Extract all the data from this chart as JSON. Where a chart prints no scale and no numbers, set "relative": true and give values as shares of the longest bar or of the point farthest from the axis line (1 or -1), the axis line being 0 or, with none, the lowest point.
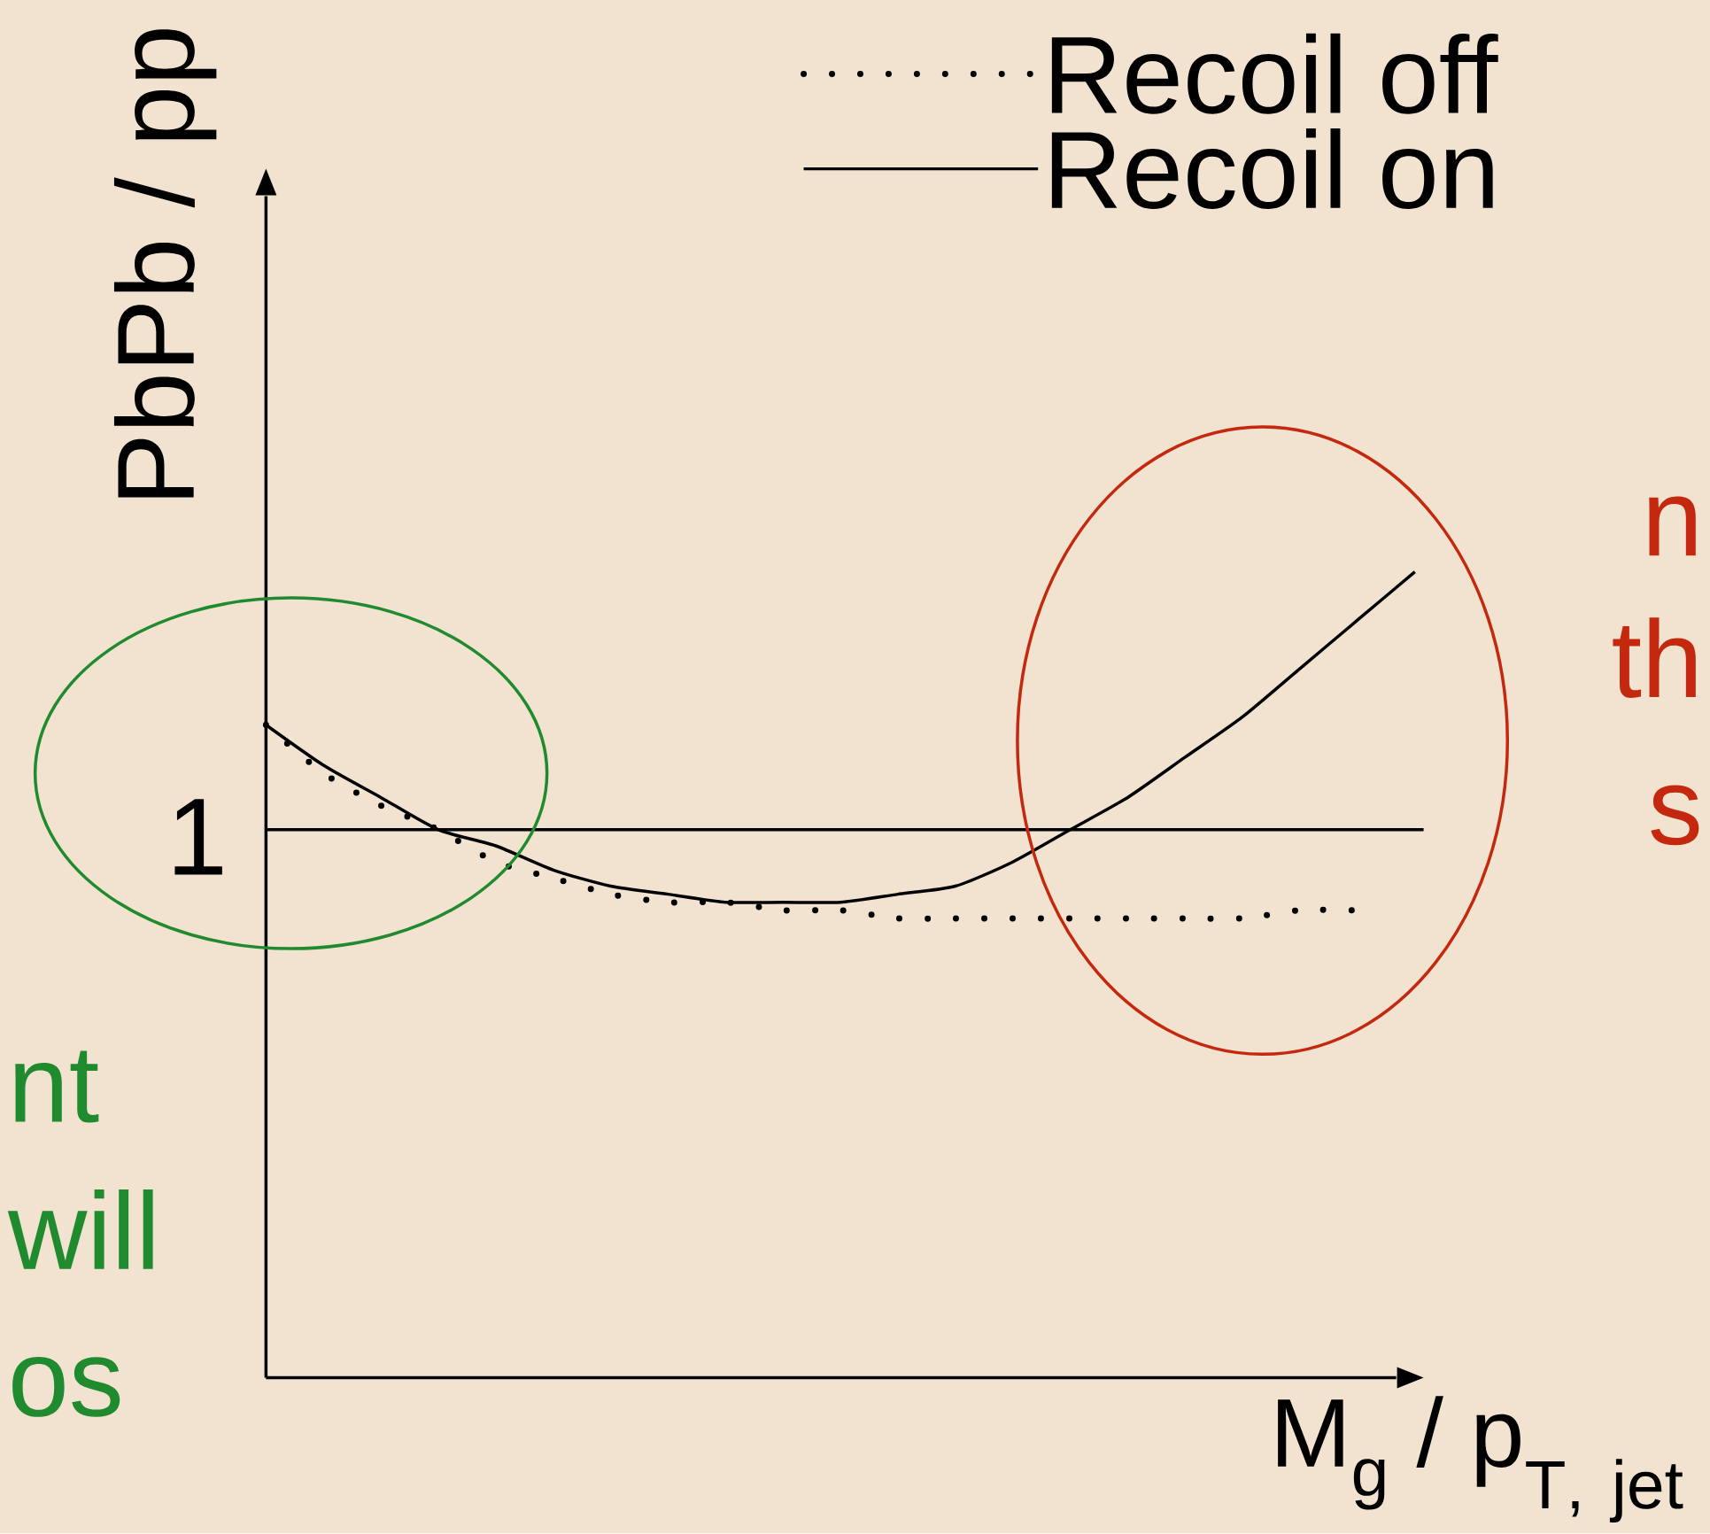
{
  "chart_data": {
    "type": "line",
    "relative": true,
    "xlabel": "\\mathrm{M_{g}}\\hbox{ / }\\mathrm{p}_{\\mathrm{T}\\hbox{\\fontsize{75}{80}\\selectfont ,}\\mathrm{\\ jet}}",
    "ylabel": "PbPb / pp",
    "categories": [
      null,
      null,
      null,
      null,
      null,
      null,
      null,
      null,
      null,
      null,
      null,
      null,
      null,
      null,
      null,
      null,
      null,
      null,
      null,
      null,
      null
    ],
    "series": [
      {
        "name": "Recoil off",
        "color": "#000000",
        "line_style": "dotted",
        "values": [
          0.81,
          0.75,
          0.71,
          0.68,
          0.64,
          0.62,
          0.6,
          0.59,
          0.59,
          0.58,
          0.58,
          0.57,
          0.57,
          0.57,
          0.57,
          0.57,
          0.57,
          0.57,
          0.58,
          0.58,
          null
        ]
      },
      {
        "name": "Recoil on",
        "color": "#000000",
        "line_style": "solid",
        "values": [
          0.81,
          0.76,
          0.72,
          0.68,
          0.66,
          0.63,
          0.61,
          0.6,
          0.59,
          0.59,
          0.59,
          0.6,
          0.61,
          0.64,
          0.68,
          0.72,
          0.77,
          0.82,
          0.88,
          0.94,
          1
        ]
      }
    ],
    "ref_lines": [
      {
        "axis": "y",
        "value": 0.68,
        "label": "1",
        "color": "#000000"
      }
    ],
    "legend": "top right",
    "annotations": [
      "nt",
      "will",
      "os",
      "n",
      "th",
      "s"
    ]
  }
}
